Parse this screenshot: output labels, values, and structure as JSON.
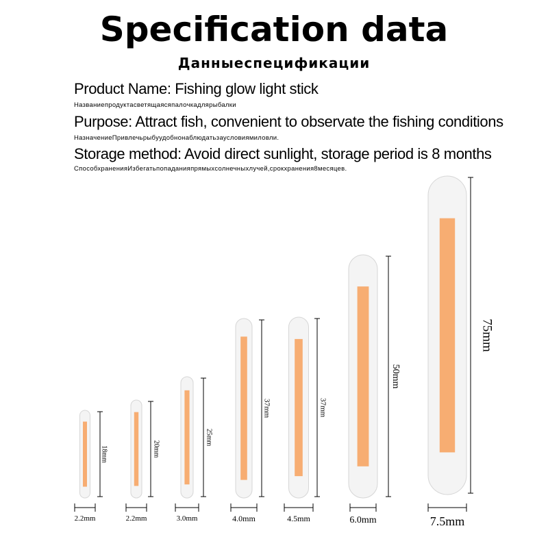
{
  "header": {
    "title": "Specification data",
    "subtitle": "Данныеспецификации"
  },
  "specs": [
    {
      "text": "Product Name: Fishing glow light stick",
      "translation": "Названиепродуктасветящаясяпалочкадлярыбалки"
    },
    {
      "text": "Purpose: Attract fish, convenient to observate the fishing conditions",
      "translation": "НазначениеПривлечьрыбуудобнонаблюдатьзаусловиямиловли."
    },
    {
      "text": "Storage method: Avoid direct sunlight, storage period is 8 months",
      "translation": "СпособхраненияИзбегатьпопаданияпрямыхсолнечныхлучей,срокхранения8месяцев."
    }
  ],
  "sticks": [
    {
      "length": "18mm",
      "diameter": "2.2mm"
    },
    {
      "length": "20mm",
      "diameter": "2.2mm"
    },
    {
      "length": "25mm",
      "diameter": "3.0mm"
    },
    {
      "length": "37mm",
      "diameter": "4.0mm"
    },
    {
      "length": "37mm",
      "diameter": "4.5mm"
    },
    {
      "length": "50mm",
      "diameter": "6.0mm"
    },
    {
      "length": "75mm",
      "diameter": "7.5mm"
    }
  ],
  "colors": {
    "glow": "#f7ad72",
    "tube": "#f4f4f4",
    "tube_border": "#d6d6d6"
  }
}
